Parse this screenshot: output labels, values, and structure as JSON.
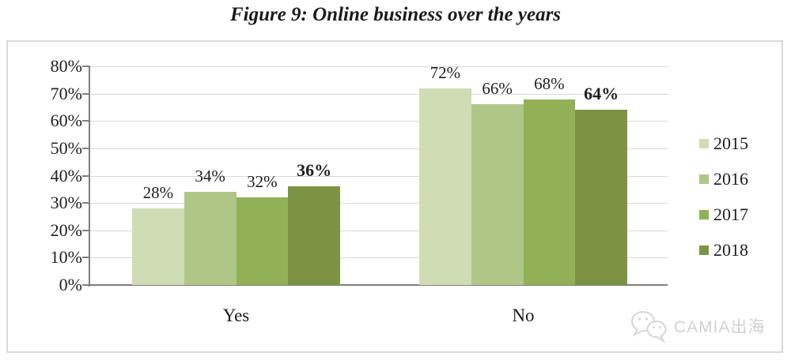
{
  "title": "Figure 9: Online business over the years",
  "chart_data": {
    "type": "bar",
    "categories": [
      "Yes",
      "No"
    ],
    "series": [
      {
        "name": "2015",
        "color": "#d0dcb4",
        "values": [
          28,
          72
        ]
      },
      {
        "name": "2016",
        "color": "#afc687",
        "values": [
          34,
          66
        ]
      },
      {
        "name": "2017",
        "color": "#92b156",
        "values": [
          32,
          68
        ]
      },
      {
        "name": "2018",
        "color": "#7b9342",
        "values": [
          36,
          64
        ],
        "emphasis": true
      }
    ],
    "value_suffix": "%",
    "data_labels": true,
    "ylim": [
      0,
      80
    ],
    "ytick_step": 10,
    "ytick_labels": [
      "80%",
      "70%",
      "60%",
      "50%",
      "40%",
      "30%",
      "20%",
      "10%",
      "0%"
    ],
    "grid": true,
    "legend_position": "right",
    "xlabel": "",
    "ylabel": "",
    "colors": {
      "gridline": "#d9d9d9",
      "axis": "#7f7f7f",
      "frame_border": "#d9d9d9",
      "text": "#1f1f1f"
    }
  },
  "watermark": {
    "icon": "wechat-icon",
    "text": "CAMIA出海"
  }
}
